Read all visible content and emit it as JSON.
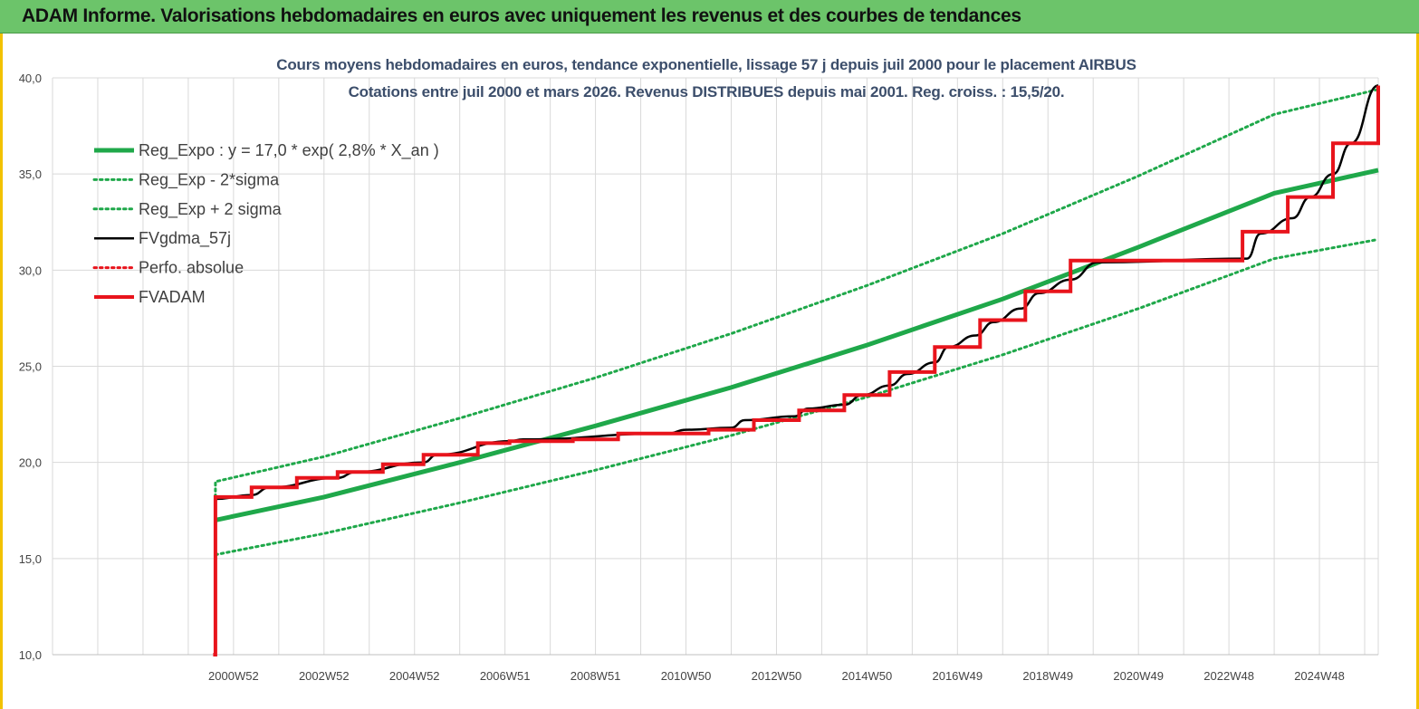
{
  "header": {
    "title": "ADAM Informe. Valorisations hebdomadaires en euros avec uniquement les revenus et des courbes de tendances"
  },
  "colors": {
    "banner": "#6cc46a",
    "frame": "#f2c200",
    "trend": "#1fa84a",
    "fvadam": "#e8141c",
    "fvgdma": "#000000",
    "title_text": "#3c4e6b"
  },
  "chart_data": {
    "type": "line",
    "title": "Cours moyens hebdomadaires en euros, tendance exponentielle, lissage 57 j depuis juil 2000 pour le placement AIRBUS",
    "subtitle": "Cotations entre juil 2000 et mars 2026. Revenus DISTRIBUES depuis mai 2001. Reg. croiss. : 15,5/20.",
    "xlabel": "",
    "ylabel": "",
    "grid": true,
    "legend_position": "top-left",
    "xlim": [
      1997.0,
      2026.3
    ],
    "ylim": [
      10,
      40
    ],
    "y_ticks": [
      "10,0",
      "15,0",
      "20,0",
      "25,0",
      "30,0",
      "35,0",
      "40,0"
    ],
    "x_ticks": [
      {
        "x": 2001.0,
        "label": "2000W52"
      },
      {
        "x": 2003.0,
        "label": "2002W52"
      },
      {
        "x": 2005.0,
        "label": "2004W52"
      },
      {
        "x": 2007.0,
        "label": "2006W51"
      },
      {
        "x": 2009.0,
        "label": "2008W51"
      },
      {
        "x": 2011.0,
        "label": "2010W50"
      },
      {
        "x": 2013.0,
        "label": "2012W50"
      },
      {
        "x": 2015.0,
        "label": "2014W50"
      },
      {
        "x": 2017.0,
        "label": "2016W49"
      },
      {
        "x": 2019.0,
        "label": "2018W49"
      },
      {
        "x": 2021.0,
        "label": "2020W49"
      },
      {
        "x": 2023.0,
        "label": "2022W48"
      },
      {
        "x": 2025.0,
        "label": "2024W48"
      }
    ],
    "series": [
      {
        "name": "Reg_Expo : y = 17,0 * exp( 2,8% *  X_an )",
        "style": "solid-thick",
        "color": "#1fa84a",
        "x": [
          2000.6,
          2003.0,
          2006.0,
          2009.0,
          2012.0,
          2015.0,
          2018.0,
          2021.0,
          2024.0,
          2026.3
        ],
        "y": [
          17.0,
          18.2,
          20.0,
          21.9,
          23.9,
          26.1,
          28.5,
          31.2,
          34.0,
          35.2
        ]
      },
      {
        "name": "Reg_Exp - 2*sigma",
        "style": "dotted",
        "color": "#1fa84a",
        "x": [
          2000.6,
          2003.0,
          2006.0,
          2009.0,
          2012.0,
          2015.0,
          2018.0,
          2021.0,
          2024.0,
          2026.3
        ],
        "y": [
          15.2,
          16.3,
          17.9,
          19.6,
          21.4,
          23.4,
          25.6,
          28.0,
          30.6,
          31.6
        ]
      },
      {
        "name": "Reg_Exp + 2 sigma",
        "style": "dotted",
        "color": "#1fa84a",
        "x": [
          2000.6,
          2000.6,
          2003.0,
          2006.0,
          2009.0,
          2012.0,
          2015.0,
          2018.0,
          2021.0,
          2024.0,
          2026.3
        ],
        "y": [
          18.2,
          19.0,
          20.3,
          22.3,
          24.4,
          26.7,
          29.2,
          31.9,
          34.9,
          38.1,
          39.4
        ]
      },
      {
        "name": "FVgdma_57j",
        "style": "solid",
        "color": "#000000",
        "x": [
          2000.6,
          2001.4,
          2001.8,
          2003.3,
          2003.7,
          2005.2,
          2005.5,
          2007.1,
          2007.4,
          2010.6,
          2011.0,
          2012.0,
          2012.3,
          2013.4,
          2013.7,
          2014.5,
          2014.9,
          2015.5,
          2015.9,
          2016.5,
          2016.8,
          2017.4,
          2017.8,
          2018.4,
          2018.8,
          2019.5,
          2020.1,
          2023.4,
          2023.7,
          2024.4,
          2024.8,
          2025.3,
          2025.7,
          2026.3
        ],
        "y": [
          18.1,
          18.3,
          18.7,
          19.2,
          19.5,
          20.0,
          20.4,
          21.1,
          21.2,
          21.5,
          21.7,
          21.8,
          22.2,
          22.4,
          22.8,
          23.0,
          23.5,
          24.0,
          24.6,
          25.2,
          26.0,
          26.6,
          27.3,
          28.0,
          28.8,
          29.5,
          30.4,
          30.6,
          31.9,
          32.7,
          33.8,
          35.0,
          36.6,
          39.6
        ]
      },
      {
        "name": "Perfo. absolue",
        "style": "dotted",
        "color": "#e8141c",
        "x": [],
        "y": []
      },
      {
        "name": "FVADAM",
        "style": "step-thick",
        "color": "#e8141c",
        "x": [
          2000.55,
          2000.6,
          2001.4,
          2002.4,
          2003.3,
          2004.3,
          2005.2,
          2006.4,
          2007.1,
          2008.5,
          2009.5,
          2011.5,
          2012.5,
          2013.5,
          2014.5,
          2015.5,
          2016.5,
          2017.5,
          2018.5,
          2019.5,
          2023.3,
          2024.3,
          2025.3,
          2026.3
        ],
        "y": [
          10.0,
          18.2,
          18.7,
          19.2,
          19.5,
          19.9,
          20.4,
          21.0,
          21.1,
          21.2,
          21.5,
          21.7,
          22.2,
          22.7,
          23.5,
          24.7,
          26.0,
          27.4,
          28.9,
          30.5,
          32.0,
          33.8,
          36.6,
          39.6
        ]
      }
    ]
  }
}
